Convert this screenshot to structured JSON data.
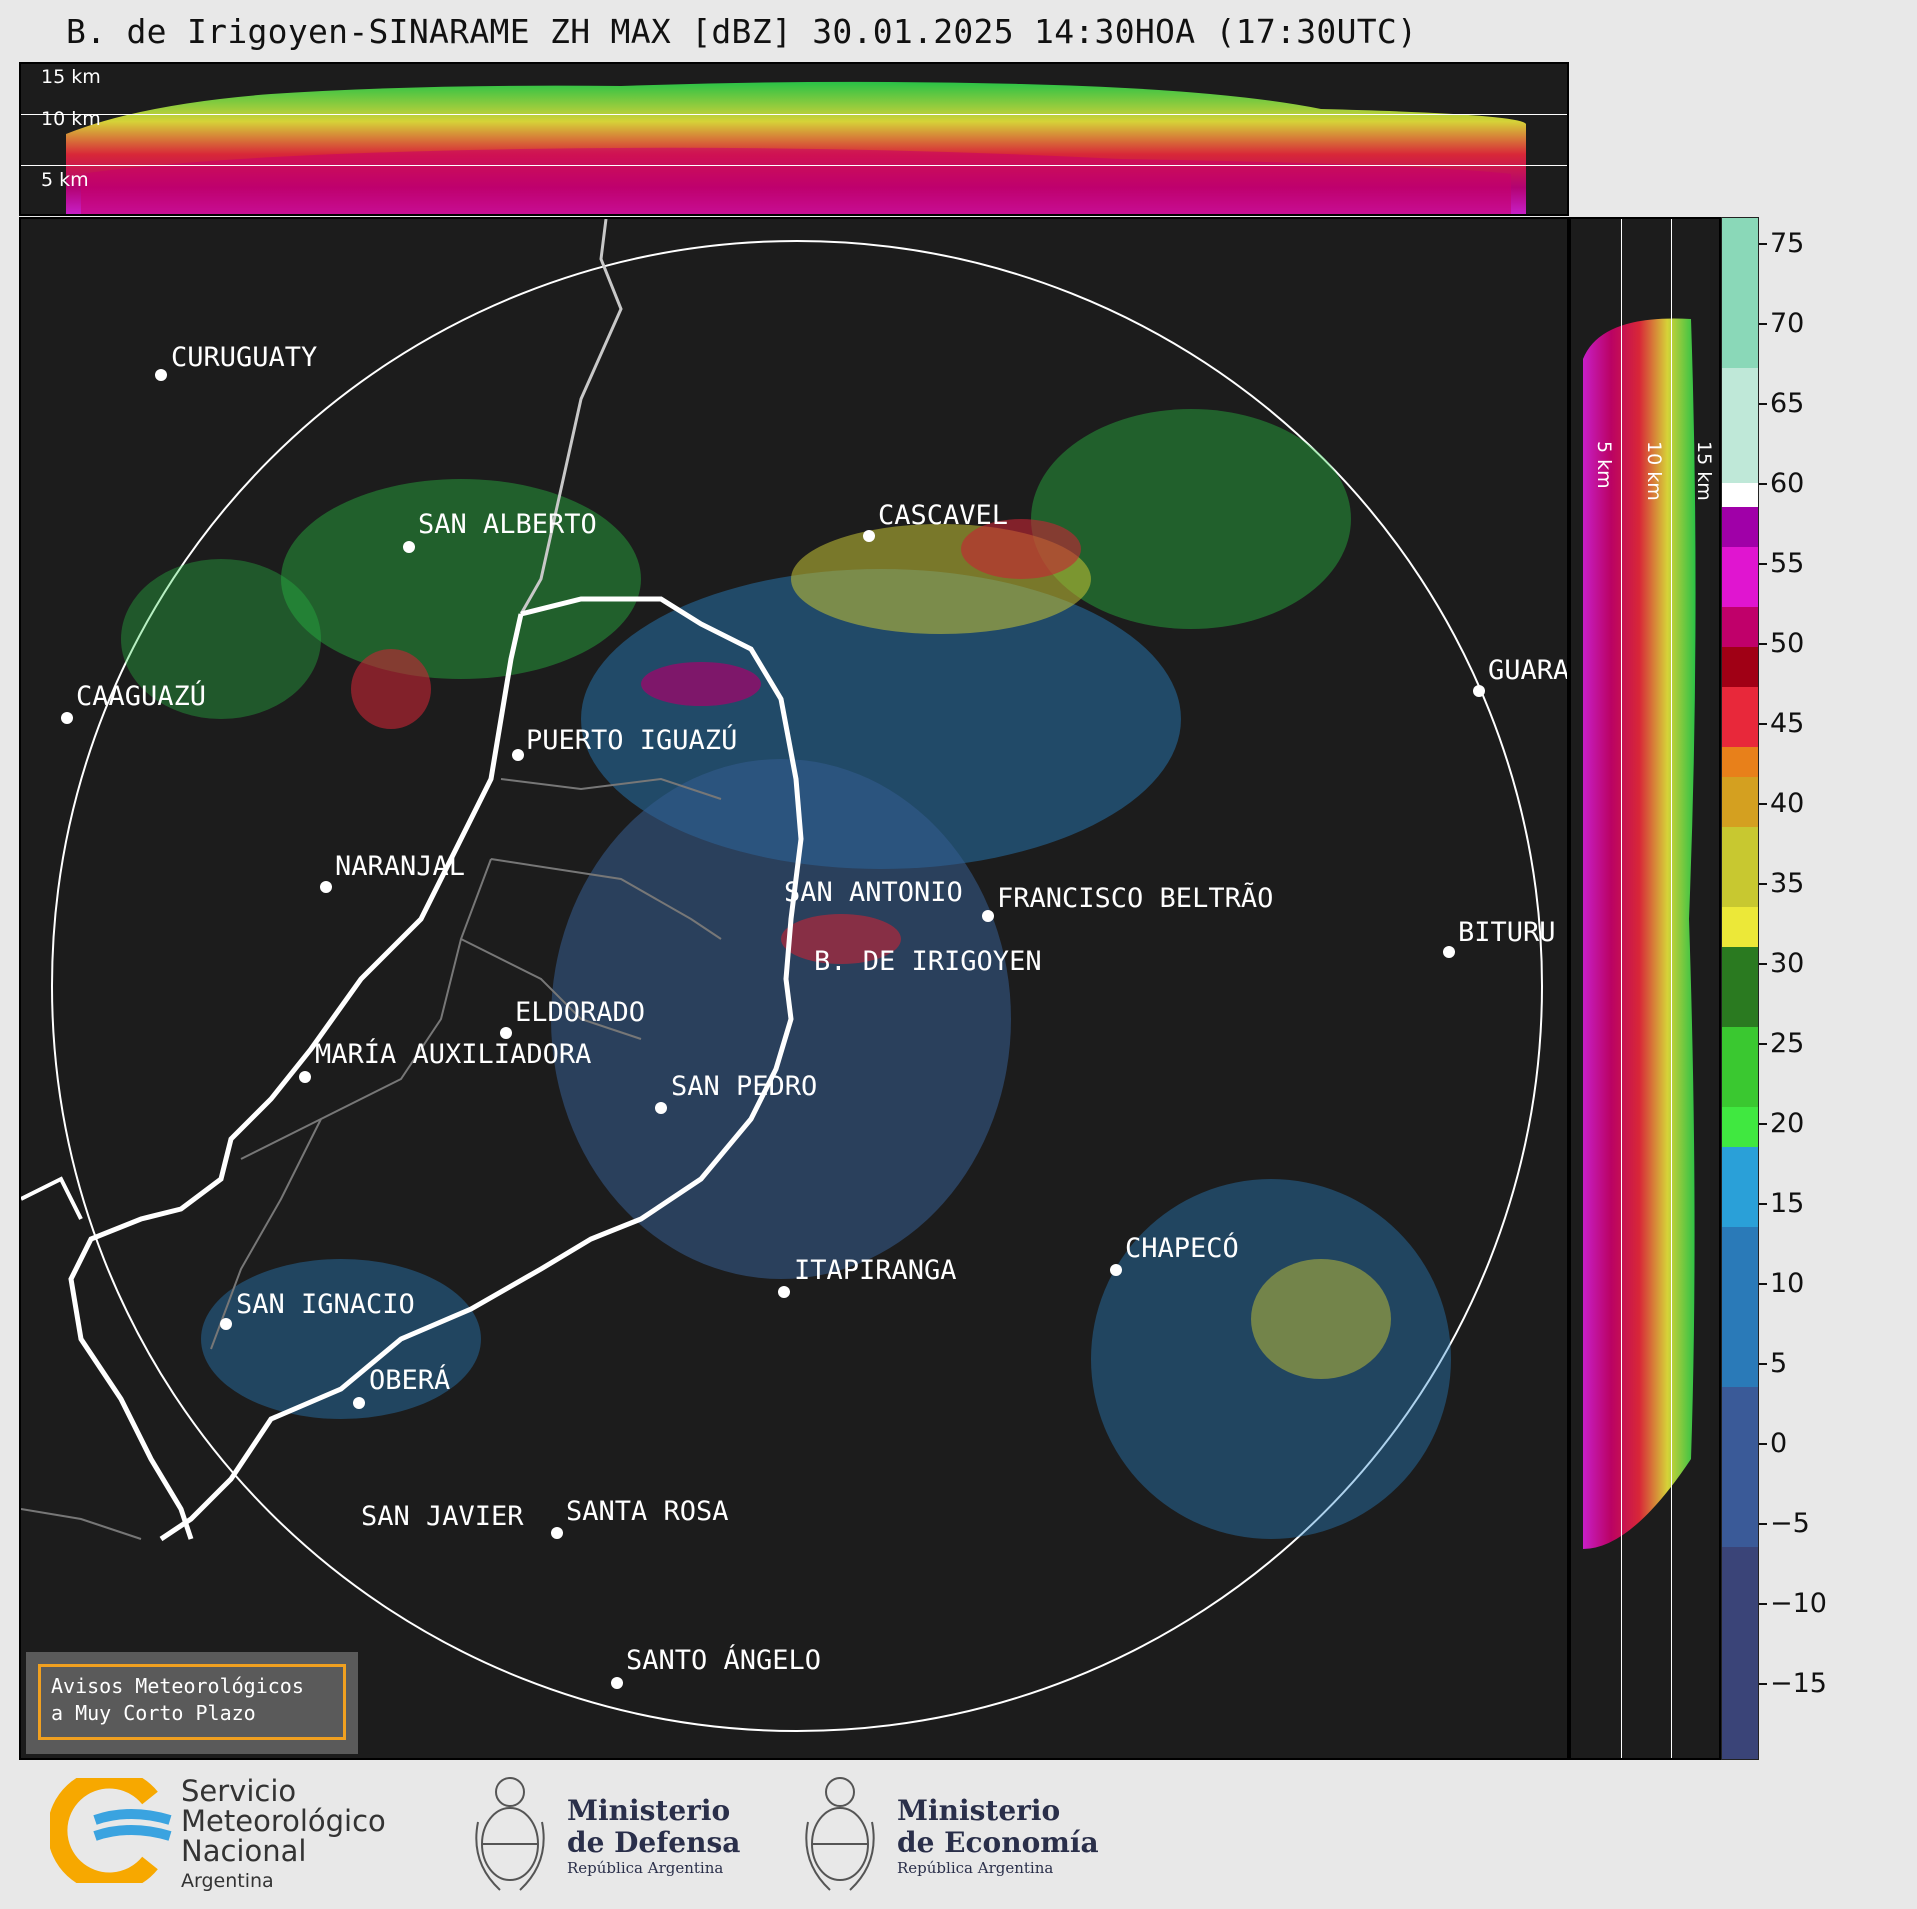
{
  "title": "B. de Irigoyen-SINARAME ZH MAX [dBZ] 30.01.2025 14:30HOA (17:30UTC)",
  "top_panel": {
    "height_labels": [
      "15 km",
      "10 km",
      "5 km"
    ]
  },
  "side_panel": {
    "height_labels": [
      "5 km",
      "10 km",
      "15 km"
    ]
  },
  "colorbar": {
    "unit": "dBZ",
    "ticks": [
      "75",
      "70",
      "65",
      "60",
      "55",
      "50",
      "45",
      "40",
      "35",
      "30",
      "25",
      "20",
      "15",
      "10",
      "5",
      "0",
      "−5",
      "−10",
      "−15"
    ]
  },
  "cities": [
    {
      "name": "CURUGUATY"
    },
    {
      "name": "SAN ALBERTO"
    },
    {
      "name": "CASCAVEL"
    },
    {
      "name": "CAAGUAZÚ"
    },
    {
      "name": "GUARA"
    },
    {
      "name": "PUERTO IGUAZÚ"
    },
    {
      "name": "NARANJAL"
    },
    {
      "name": "SAN ANTONIO"
    },
    {
      "name": "FRANCISCO BELTRÃO"
    },
    {
      "name": "BITURU"
    },
    {
      "name": "B. DE IRIGOYEN"
    },
    {
      "name": "ELDORADO"
    },
    {
      "name": "MARÍA AUXILIADORA"
    },
    {
      "name": "SAN PEDRO"
    },
    {
      "name": "CHAPECÓ"
    },
    {
      "name": "ITAPIRANGA"
    },
    {
      "name": "SAN IGNACIO"
    },
    {
      "name": "OBERÁ"
    },
    {
      "name": "SAN JAVIER"
    },
    {
      "name": "SANTA ROSA"
    },
    {
      "name": "SANTO ÁNGELO"
    }
  ],
  "aviso": {
    "line1": "Avisos Meteorológicos",
    "line2": "a Muy Corto Plazo"
  },
  "footer": {
    "smn_line1": "Servicio",
    "smn_line2": "Meteorológico",
    "smn_line3": "Nacional",
    "smn_country": "Argentina",
    "defensa_line1": "Ministerio",
    "defensa_line2": "de Defensa",
    "defensa_sub": "República Argentina",
    "economia_line1": "Ministerio",
    "economia_line2": "de Economía",
    "economia_sub": "República Argentina"
  }
}
